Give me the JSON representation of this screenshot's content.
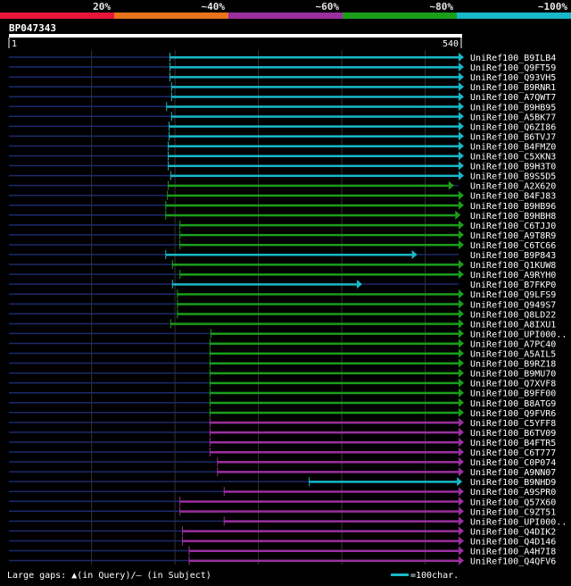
{
  "query": {
    "name": "BP047343",
    "start_label": "1",
    "end_label": "540",
    "length": 540
  },
  "identity_scale": [
    {
      "label": "20%",
      "color": "#e8153a"
    },
    {
      "label": "~40%",
      "color": "#e8741c"
    },
    {
      "label": "~60%",
      "color": "#9b2fa0"
    },
    {
      "label": "~80%",
      "color": "#1a9e1a"
    },
    {
      "label": "~100%",
      "color": "#17b8c8"
    }
  ],
  "colors": {
    "background": "#000000",
    "grid": "#333333",
    "unaligned": "#1c2a6b",
    "gap_marker": "#ffff99"
  },
  "hits": [
    {
      "name": "UniRef100_B9ILB4",
      "start": 194,
      "end": 540,
      "level": 4
    },
    {
      "name": "UniRef100_Q9FT59",
      "start": 194,
      "end": 540,
      "level": 4
    },
    {
      "name": "UniRef100_Q93VH5",
      "start": 194,
      "end": 540,
      "level": 4
    },
    {
      "name": "UniRef100_B9RNR1",
      "start": 196,
      "end": 540,
      "level": 4
    },
    {
      "name": "UniRef100_A7QWT7",
      "start": 196,
      "end": 540,
      "level": 4
    },
    {
      "name": "UniRef100_B9HB95",
      "start": 190,
      "end": 540,
      "level": 4
    },
    {
      "name": "UniRef100_A5BK77",
      "start": 196,
      "end": 540,
      "level": 4
    },
    {
      "name": "UniRef100_Q6ZI86",
      "start": 193,
      "end": 540,
      "level": 4
    },
    {
      "name": "UniRef100_B6TVJ7",
      "start": 193,
      "end": 540,
      "level": 4
    },
    {
      "name": "UniRef100_B4FMZ0",
      "start": 192,
      "end": 540,
      "level": 4
    },
    {
      "name": "UniRef100_C5XKN3",
      "start": 192,
      "end": 540,
      "level": 4
    },
    {
      "name": "UniRef100_B9H3T0",
      "start": 192,
      "end": 540,
      "level": 4
    },
    {
      "name": "UniRef100_B9S5D5",
      "start": 195,
      "end": 540,
      "level": 4
    },
    {
      "name": "UniRef100_A2X620",
      "start": 192,
      "end": 528,
      "level": 3
    },
    {
      "name": "UniRef100_B4FJ83",
      "start": 191,
      "end": 540,
      "level": 3
    },
    {
      "name": "UniRef100_B9HB96",
      "start": 189,
      "end": 540,
      "level": 3
    },
    {
      "name": "UniRef100_B9HBH8",
      "start": 189,
      "end": 536,
      "level": 3
    },
    {
      "name": "UniRef100_C6TJJ0",
      "start": 206,
      "end": 540,
      "level": 3
    },
    {
      "name": "UniRef100_A9T8R9",
      "start": 206,
      "end": 540,
      "level": 3
    },
    {
      "name": "UniRef100_C6TC66",
      "start": 206,
      "end": 540,
      "level": 3
    },
    {
      "name": "UniRef100_B9P843",
      "start": 189,
      "end": 484,
      "level": 4
    },
    {
      "name": "UniRef100_Q1KUW8",
      "start": 197,
      "end": 540,
      "level": 3
    },
    {
      "name": "UniRef100_A9RYH0",
      "start": 206,
      "end": 540,
      "level": 3
    },
    {
      "name": "UniRef100_B7FKP0",
      "start": 197,
      "end": 418,
      "level": 4
    },
    {
      "name": "UniRef100_Q9LFS9",
      "start": 203,
      "end": 540,
      "level": 3
    },
    {
      "name": "UniRef100_Q949S7",
      "start": 203,
      "end": 540,
      "level": 3
    },
    {
      "name": "UniRef100_Q8LD22",
      "start": 203,
      "end": 540,
      "level": 3
    },
    {
      "name": "UniRef100_A8IXU1",
      "start": 195,
      "end": 540,
      "level": 3
    },
    {
      "name": "UniRef100_UPI000..",
      "start": 243,
      "end": 540,
      "level": 3
    },
    {
      "name": "UniRef100_A7PC40",
      "start": 242,
      "end": 540,
      "level": 3
    },
    {
      "name": "UniRef100_A5AIL5",
      "start": 242,
      "end": 540,
      "level": 3
    },
    {
      "name": "UniRef100_B9RZ18",
      "start": 242,
      "end": 540,
      "level": 3
    },
    {
      "name": "UniRef100_B9MU70",
      "start": 242,
      "end": 540,
      "level": 3
    },
    {
      "name": "UniRef100_Q7XVF8",
      "start": 242,
      "end": 540,
      "level": 3
    },
    {
      "name": "UniRef100_B9FF00",
      "start": 242,
      "end": 540,
      "level": 3
    },
    {
      "name": "UniRef100_B8ATG9",
      "start": 242,
      "end": 540,
      "level": 3
    },
    {
      "name": "UniRef100_Q9FVR6",
      "start": 242,
      "end": 540,
      "level": 3
    },
    {
      "name": "UniRef100_C5YFF8",
      "start": 242,
      "end": 540,
      "level": 2
    },
    {
      "name": "UniRef100_B6TV09",
      "start": 242,
      "end": 540,
      "level": 2
    },
    {
      "name": "UniRef100_B4FTR5",
      "start": 242,
      "end": 540,
      "level": 2
    },
    {
      "name": "UniRef100_C6T777",
      "start": 242,
      "end": 540,
      "level": 2
    },
    {
      "name": "UniRef100_C0P074",
      "start": 251,
      "end": 540,
      "level": 2
    },
    {
      "name": "UniRef100_A9NN07",
      "start": 251,
      "end": 540,
      "level": 2
    },
    {
      "name": "UniRef100_B9NHD9",
      "start": 361,
      "end": 538,
      "level": 4
    },
    {
      "name": "UniRef100_A9SPR0",
      "start": 259,
      "end": 540,
      "level": 2
    },
    {
      "name": "UniRef100_Q57X60",
      "start": 206,
      "end": 540,
      "level": 2
    },
    {
      "name": "UniRef100_C9ZT51",
      "start": 206,
      "end": 540,
      "level": 2
    },
    {
      "name": "UniRef100_UPI000..",
      "start": 259,
      "end": 540,
      "level": 2
    },
    {
      "name": "UniRef100_Q4DIK2",
      "start": 209,
      "end": 540,
      "level": 2
    },
    {
      "name": "UniRef100_Q4D146",
      "start": 209,
      "end": 540,
      "level": 2
    },
    {
      "name": "UniRef100_A4H7I8",
      "start": 217,
      "end": 540,
      "level": 2
    },
    {
      "name": "UniRef100_Q4QFV6",
      "start": 217,
      "end": 540,
      "level": 2
    }
  ],
  "legend": {
    "gaps_text": "Large gaps: ▲(in Query)/– (in Subject)",
    "scale_text": "=100char."
  }
}
